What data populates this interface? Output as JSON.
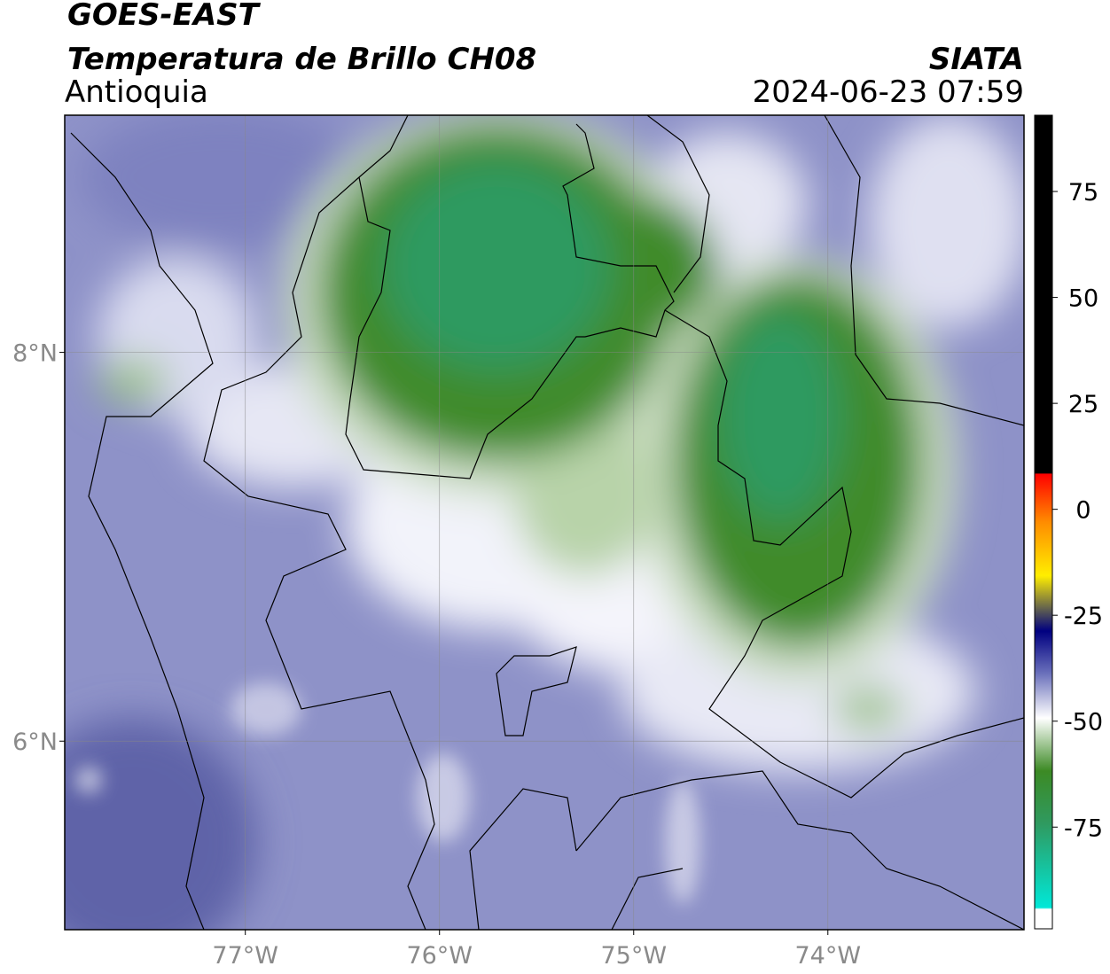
{
  "header": {
    "satellite": "GOES-EAST",
    "product": "Temperatura de Brillo CH08",
    "region": "Antioquia",
    "source": "SIATA",
    "datetime": "2024-06-23 07:59"
  },
  "map": {
    "xlim": [
      -77.93,
      -72.99
    ],
    "ylim": [
      5.03,
      9.22
    ],
    "xticks": [
      {
        "value": -77,
        "label": "77°W"
      },
      {
        "value": -76,
        "label": "76°W"
      },
      {
        "value": -75,
        "label": "75°W"
      },
      {
        "value": -74,
        "label": "74°W"
      }
    ],
    "yticks": [
      {
        "value": 6,
        "label": "6°N"
      },
      {
        "value": 8,
        "label": "8°N"
      }
    ],
    "grid": true
  },
  "colorbar": {
    "lim": [
      -99,
      93
    ],
    "ticks": [
      75,
      50,
      25,
      0,
      -25,
      -50,
      -75
    ]
  }
}
